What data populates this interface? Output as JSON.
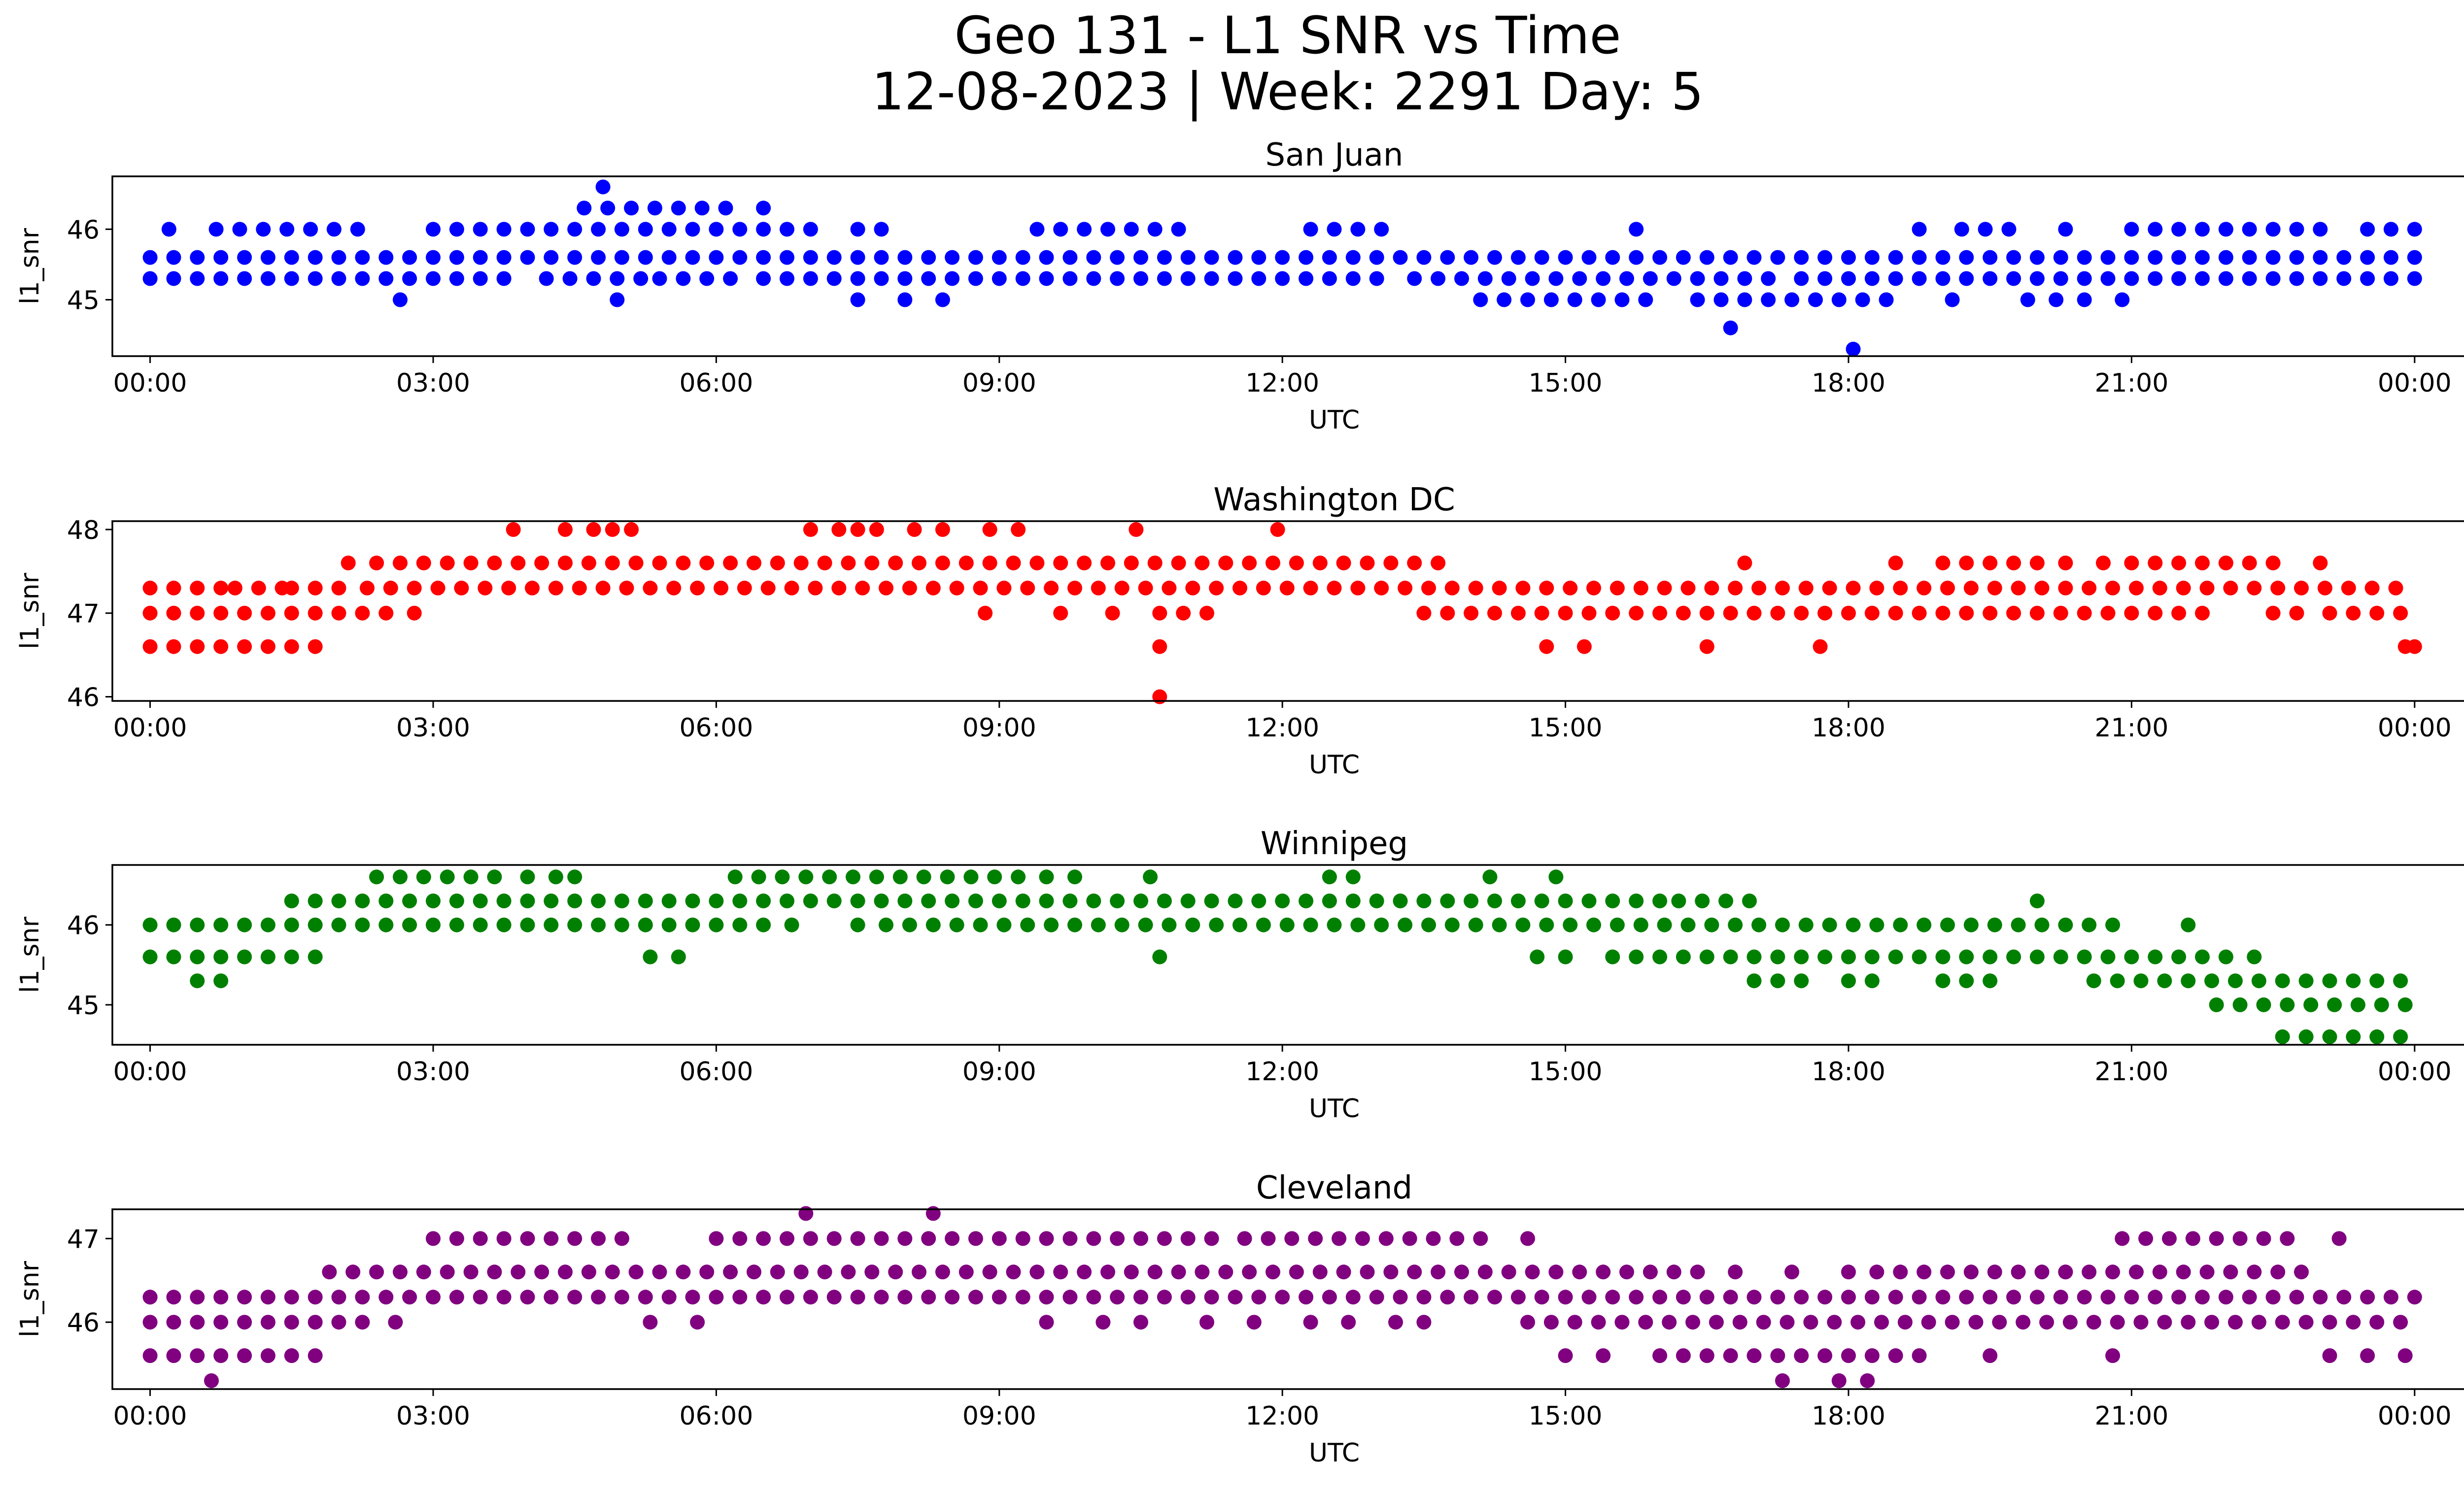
{
  "title_line1": "Geo 131 - L1 SNR vs Time",
  "title_line2": "12-08-2023 | Week: 2291 Day: 5",
  "chart_data": [
    {
      "type": "scatter",
      "title": "San Juan",
      "xlabel": "UTC",
      "ylabel": "l1_snr",
      "color": "#0000ff",
      "xlim_hours": [
        -0.4,
        25.5
      ],
      "ylim": [
        44.2,
        46.75
      ],
      "x_tick_labels": [
        "00:00",
        "03:00",
        "06:00",
        "09:00",
        "12:00",
        "15:00",
        "18:00",
        "21:00",
        "00:00"
      ],
      "y_ticks": [
        45,
        46
      ],
      "series": [
        {
          "y": 45.6,
          "ranges": [
            [
              0.0,
              24.0
            ]
          ]
        },
        {
          "y": 45.3,
          "ranges": [
            [
              0.0,
              3.8
            ],
            [
              4.2,
              5.2
            ],
            [
              5.4,
              6.2
            ],
            [
              6.5,
              13.0
            ],
            [
              13.4,
              17.2
            ],
            [
              17.5,
              24.0
            ]
          ]
        },
        {
          "y": 46.0,
          "ranges": [
            [
              0.2,
              0.3
            ],
            [
              0.7,
              2.3
            ],
            [
              3.0,
              7.2
            ],
            [
              9.4,
              11.1
            ],
            [
              12.3,
              13.2
            ],
            [
              19.2,
              19.9
            ],
            [
              21.0,
              23.1
            ],
            [
              23.5,
              24.0
            ]
          ]
        },
        {
          "y": 46.3,
          "ranges": [
            [
              4.6,
              6.1
            ]
          ]
        },
        {
          "y": 45.0,
          "ranges": [
            [
              14.1,
              16.0
            ],
            [
              16.4,
              18.2
            ],
            [
              18.4,
              18.6
            ]
          ]
        },
        {
          "y": 46.6,
          "ranges": [
            [
              4.8,
              4.9
            ]
          ]
        }
      ],
      "points": [
        [
          2.65,
          45.0
        ],
        [
          4.95,
          45.0
        ],
        [
          7.5,
          45.0
        ],
        [
          8.0,
          45.0
        ],
        [
          8.4,
          45.0
        ],
        [
          6.5,
          46.3
        ],
        [
          15.75,
          46.0
        ],
        [
          18.75,
          46.0
        ],
        [
          20.3,
          46.0
        ],
        [
          16.75,
          44.6
        ],
        [
          18.05,
          44.3
        ],
        [
          19.1,
          45.0
        ],
        [
          19.9,
          45.0
        ],
        [
          20.2,
          45.0
        ],
        [
          20.5,
          45.0
        ],
        [
          20.9,
          45.0
        ],
        [
          7.5,
          46.0
        ],
        [
          7.75,
          46.0
        ]
      ]
    },
    {
      "type": "scatter",
      "title": "Washington DC",
      "xlabel": "UTC",
      "ylabel": "l1_snr",
      "color": "#ff0000",
      "xlim_hours": [
        -0.4,
        25.5
      ],
      "ylim": [
        45.95,
        48.1
      ],
      "x_tick_labels": [
        "00:00",
        "03:00",
        "06:00",
        "09:00",
        "12:00",
        "15:00",
        "18:00",
        "21:00",
        "00:00"
      ],
      "y_ticks": [
        46,
        47,
        48
      ],
      "series": [
        {
          "y": 47.3,
          "ranges": [
            [
              0.0,
              0.8
            ],
            [
              0.9,
              1.4
            ],
            [
              1.5,
              2.2
            ],
            [
              2.3,
              24.0
            ]
          ]
        },
        {
          "y": 47.0,
          "ranges": [
            [
              0.0,
              2.6
            ],
            [
              13.5,
              21.8
            ],
            [
              22.5,
              22.8
            ],
            [
              23.1,
              24.0
            ]
          ]
        },
        {
          "y": 46.6,
          "ranges": [
            [
              0.0,
              1.9
            ]
          ]
        },
        {
          "y": 47.6,
          "ranges": [
            [
              2.4,
              13.7
            ],
            [
              16.9,
              17.1
            ],
            [
              19.0,
              20.0
            ],
            [
              21.0,
              22.7
            ]
          ]
        }
      ],
      "points": [
        [
          2.1,
          47.6
        ],
        [
          2.8,
          47.0
        ],
        [
          3.85,
          48.0
        ],
        [
          4.4,
          48.0
        ],
        [
          4.7,
          48.0
        ],
        [
          4.9,
          48.0
        ],
        [
          5.1,
          48.0
        ],
        [
          7.0,
          48.0
        ],
        [
          7.3,
          48.0
        ],
        [
          7.5,
          48.0
        ],
        [
          7.7,
          48.0
        ],
        [
          8.1,
          48.0
        ],
        [
          8.4,
          48.0
        ],
        [
          8.9,
          48.0
        ],
        [
          9.2,
          48.0
        ],
        [
          10.45,
          48.0
        ],
        [
          11.95,
          48.0
        ],
        [
          8.85,
          47.0
        ],
        [
          9.65,
          47.0
        ],
        [
          10.2,
          47.0
        ],
        [
          10.7,
          47.0
        ],
        [
          10.95,
          47.0
        ],
        [
          11.2,
          47.0
        ],
        [
          10.7,
          46.6
        ],
        [
          10.7,
          46.0
        ],
        [
          14.8,
          46.6
        ],
        [
          15.2,
          46.6
        ],
        [
          16.5,
          46.6
        ],
        [
          17.7,
          46.6
        ],
        [
          18.5,
          47.6
        ],
        [
          20.3,
          47.6
        ],
        [
          20.7,
          47.6
        ],
        [
          23.0,
          47.6
        ],
        [
          24.0,
          46.6
        ],
        [
          23.9,
          46.6
        ]
      ]
    },
    {
      "type": "scatter",
      "title": "Winnipeg",
      "xlabel": "UTC",
      "ylabel": "l1_snr",
      "color": "#008000",
      "xlim_hours": [
        -0.4,
        25.5
      ],
      "ylim": [
        44.5,
        46.75
      ],
      "x_tick_labels": [
        "00:00",
        "03:00",
        "06:00",
        "09:00",
        "12:00",
        "15:00",
        "18:00",
        "21:00",
        "00:00"
      ],
      "y_ticks": [
        45,
        46
      ],
      "series": [
        {
          "y": 46.0,
          "ranges": [
            [
              0.0,
              6.5
            ],
            [
              6.8,
              7.0
            ],
            [
              7.8,
              12.7
            ],
            [
              12.8,
              20.9
            ]
          ]
        },
        {
          "y": 45.6,
          "ranges": [
            [
              0.0,
              1.8
            ],
            [
              15.5,
              22.1
            ]
          ]
        },
        {
          "y": 45.3,
          "ranges": [
            [
              0.5,
              0.9
            ],
            [
              17.0,
              17.5
            ],
            [
              18.0,
              18.4
            ],
            [
              19.0,
              19.5
            ],
            [
              20.6,
              24.0
            ]
          ]
        },
        {
          "y": 46.3,
          "ranges": [
            [
              1.5,
              16.0
            ],
            [
              16.2,
              17.0
            ]
          ]
        },
        {
          "y": 46.6,
          "ranges": [
            [
              2.4,
              3.8
            ],
            [
              6.2,
              9.2
            ],
            [
              12.5,
              12.9
            ]
          ]
        },
        {
          "y": 45.0,
          "ranges": [
            [
              21.9,
              24.0
            ]
          ]
        },
        {
          "y": 44.6,
          "ranges": [
            [
              22.6,
              24.0
            ]
          ]
        }
      ],
      "points": [
        [
          4.0,
          46.6
        ],
        [
          4.3,
          46.6
        ],
        [
          4.5,
          46.6
        ],
        [
          9.5,
          46.6
        ],
        [
          9.8,
          46.6
        ],
        [
          10.6,
          46.6
        ],
        [
          14.2,
          46.6
        ],
        [
          14.9,
          46.6
        ],
        [
          5.3,
          45.6
        ],
        [
          5.6,
          45.6
        ],
        [
          7.5,
          46.0
        ],
        [
          10.7,
          45.6
        ],
        [
          14.7,
          45.6
        ],
        [
          15.0,
          45.6
        ],
        [
          20.0,
          46.3
        ],
        [
          21.6,
          46.0
        ],
        [
          22.3,
          45.6
        ]
      ]
    },
    {
      "type": "scatter",
      "title": "Cleveland",
      "xlabel": "UTC",
      "ylabel": "l1_snr",
      "color": "#800080",
      "xlim_hours": [
        -0.4,
        25.5
      ],
      "ylim": [
        45.2,
        47.35
      ],
      "x_tick_labels": [
        "00:00",
        "03:00",
        "06:00",
        "09:00",
        "12:00",
        "15:00",
        "18:00",
        "21:00",
        "00:00"
      ],
      "y_ticks": [
        46,
        47
      ],
      "series": [
        {
          "y": 46.0,
          "ranges": [
            [
              0.0,
              2.3
            ],
            [
              14.6,
              24.0
            ]
          ]
        },
        {
          "y": 45.6,
          "ranges": [
            [
              0.0,
              1.8
            ]
          ]
        },
        {
          "y": 46.3,
          "ranges": [
            [
              0.0,
              7.3
            ],
            [
              7.5,
              24.0
            ]
          ]
        },
        {
          "y": 46.6,
          "ranges": [
            [
              1.9,
              16.5
            ],
            [
              18.3,
              22.6
            ]
          ]
        },
        {
          "y": 47.0,
          "ranges": [
            [
              3.0,
              5.0
            ],
            [
              6.0,
              9.8
            ],
            [
              10.0,
              11.4
            ],
            [
              11.6,
              14.2
            ],
            [
              20.9,
              22.8
            ]
          ]
        },
        {
          "y": 45.6,
          "ranges": [
            [
              16.0,
              18.8
            ]
          ]
        }
      ],
      "points": [
        [
          0.0,
          46.3
        ],
        [
          0.65,
          45.3
        ],
        [
          2.6,
          46.0
        ],
        [
          5.3,
          46.0
        ],
        [
          5.8,
          46.0
        ],
        [
          6.95,
          47.3
        ],
        [
          8.3,
          47.3
        ],
        [
          9.5,
          46.0
        ],
        [
          10.1,
          46.0
        ],
        [
          10.5,
          46.0
        ],
        [
          11.2,
          46.0
        ],
        [
          11.7,
          46.0
        ],
        [
          12.3,
          46.0
        ],
        [
          12.7,
          46.0
        ],
        [
          13.2,
          46.0
        ],
        [
          13.5,
          46.0
        ],
        [
          14.6,
          47.0
        ],
        [
          15.0,
          45.6
        ],
        [
          15.4,
          45.6
        ],
        [
          17.3,
          45.3
        ],
        [
          17.9,
          45.3
        ],
        [
          18.2,
          45.3
        ],
        [
          19.5,
          45.6
        ],
        [
          20.8,
          45.6
        ],
        [
          22.8,
          46.6
        ],
        [
          23.1,
          45.6
        ],
        [
          23.5,
          45.6
        ],
        [
          23.9,
          45.6
        ],
        [
          23.2,
          47.0
        ],
        [
          20.3,
          46.6
        ],
        [
          18.0,
          46.6
        ],
        [
          17.4,
          46.6
        ],
        [
          16.8,
          46.6
        ]
      ]
    }
  ]
}
